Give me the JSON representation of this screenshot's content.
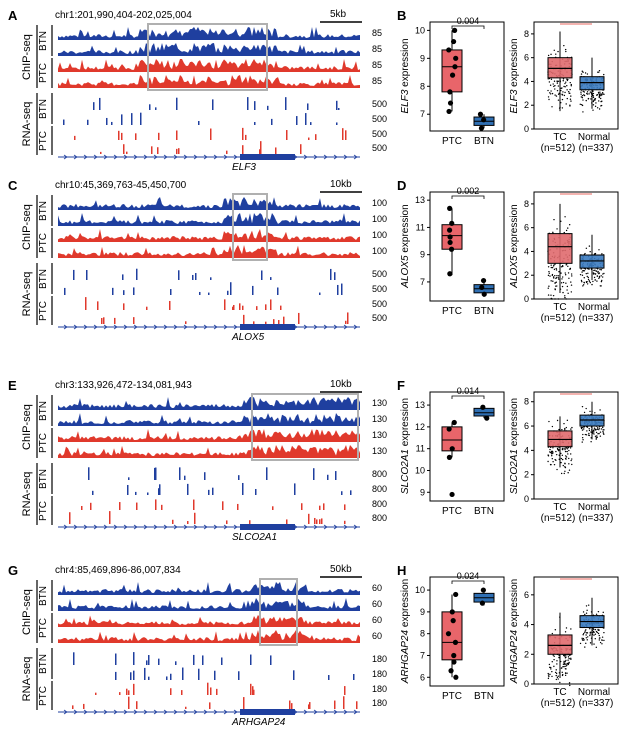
{
  "colors": {
    "btn": "#1f3f9f",
    "ptc": "#e0392c",
    "box_ptc": "#e8656a",
    "box_btn": "#2f6fb3",
    "box_tc": "#e06a6e",
    "box_normal": "#3b7bc0",
    "highlight": "#b0b0b0"
  },
  "labels": {
    "chipseq": "ChIP-seq",
    "rnaseq": "RNA-seq",
    "btn": "BTN",
    "ptc": "PTC",
    "tc": "TC",
    "normal": "Normal",
    "n_tc": "(n=512)",
    "n_normal": "(n=337)"
  },
  "panels": [
    {
      "track_letter": "A",
      "box_letter": "B",
      "coord": "chr1:201,990,404-202,025,004",
      "scale": "5kb",
      "gene": "ELF3",
      "chip_ticks": [
        "85",
        "85",
        "85",
        "85"
      ],
      "rna_ticks": [
        "500",
        "500",
        "500",
        "500"
      ],
      "ylabel": "expression",
      "pvalue": "0.004",
      "left_yticks": [
        "10",
        "9",
        "8",
        "7"
      ],
      "right_yticks": [
        "8",
        "6",
        "4",
        "2",
        "0"
      ],
      "chart_data": {
        "type": "box",
        "categories": [
          "PTC",
          "BTN"
        ],
        "ylim": [
          6.4,
          10.3
        ],
        "boxes": [
          {
            "min": 7.1,
            "q1": 7.8,
            "median": 8.7,
            "q3": 9.3,
            "max": 10.0
          },
          {
            "min": 6.5,
            "q1": 6.6,
            "median": 6.75,
            "q3": 6.9,
            "max": 7.0
          }
        ],
        "points": [
          [
            10.0,
            9.6,
            9.3,
            9.0,
            8.7,
            8.4,
            7.8,
            7.4,
            7.1
          ],
          [
            7.0,
            6.8,
            6.5
          ]
        ]
      },
      "tcga": {
        "ylim": [
          0,
          9
        ],
        "boxes": [
          {
            "min": 1.5,
            "q1": 4.3,
            "median": 5.1,
            "q3": 6.0,
            "max": 8.2
          },
          {
            "min": 1.7,
            "q1": 3.3,
            "median": 3.9,
            "q3": 4.4,
            "max": 6.0
          }
        ]
      }
    },
    {
      "track_letter": "C",
      "box_letter": "D",
      "coord": "chr10:45,369,763-45,450,700",
      "scale": "10kb",
      "gene": "ALOX5",
      "chip_ticks": [
        "100",
        "100",
        "100",
        "100"
      ],
      "rna_ticks": [
        "500",
        "500",
        "500",
        "500"
      ],
      "ylabel": "expression",
      "pvalue": "0.002",
      "left_yticks": [
        "13",
        "11",
        "9",
        "7"
      ],
      "right_yticks": [
        "8",
        "6",
        "4",
        "2",
        "0"
      ],
      "chart_data": {
        "type": "box",
        "categories": [
          "PTC",
          "BTN"
        ],
        "ylim": [
          5.6,
          13.6
        ],
        "boxes": [
          {
            "min": 7.5,
            "q1": 9.4,
            "median": 10.4,
            "q3": 11.2,
            "max": 12.4
          },
          {
            "min": 5.9,
            "q1": 6.2,
            "median": 6.5,
            "q3": 6.8,
            "max": 7.2
          }
        ],
        "points": [
          [
            12.4,
            11.3,
            10.8,
            10.3,
            9.9,
            9.4,
            7.6
          ],
          [
            7.1,
            6.6,
            6.1
          ]
        ]
      },
      "tcga": {
        "ylim": [
          0,
          9
        ],
        "boxes": [
          {
            "min": 0.5,
            "q1": 3.0,
            "median": 4.4,
            "q3": 5.5,
            "max": 8.0
          },
          {
            "min": 1.6,
            "q1": 2.6,
            "median": 3.2,
            "q3": 3.7,
            "max": 5.4
          }
        ]
      }
    },
    {
      "track_letter": "E",
      "box_letter": "F",
      "coord": "chr3:133,926,472-134,081,943",
      "scale": "10kb",
      "gene": "SLCO2A1",
      "chip_ticks": [
        "130",
        "130",
        "130",
        "130"
      ],
      "rna_ticks": [
        "800",
        "800",
        "800",
        "800"
      ],
      "ylabel": "expression",
      "pvalue": "0.014",
      "left_yticks": [
        "13",
        "12",
        "11",
        "10",
        "9"
      ],
      "right_yticks": [
        "8",
        "6",
        "4",
        "2",
        "0"
      ],
      "chart_data": {
        "type": "box",
        "categories": [
          "PTC",
          "BTN"
        ],
        "ylim": [
          8.6,
          13.6
        ],
        "boxes": [
          {
            "min": 10.6,
            "q1": 10.9,
            "median": 11.4,
            "q3": 12.0,
            "max": 12.2
          },
          {
            "min": 12.4,
            "q1": 12.5,
            "median": 12.65,
            "q3": 12.85,
            "max": 13.0
          }
        ],
        "points": [
          [
            12.2,
            11.9,
            11.0,
            10.6,
            8.9
          ],
          [
            12.9,
            12.4
          ]
        ]
      },
      "tcga": {
        "ylim": [
          0,
          8.8
        ],
        "boxes": [
          {
            "min": 2.6,
            "q1": 4.3,
            "median": 4.9,
            "q3": 5.6,
            "max": 6.8
          },
          {
            "min": 4.9,
            "q1": 6.0,
            "median": 6.5,
            "q3": 6.9,
            "max": 8.0
          }
        ]
      }
    },
    {
      "track_letter": "G",
      "box_letter": "H",
      "coord": "chr4:85,469,896-86,007,834",
      "scale": "50kb",
      "gene": "ARHGAP24",
      "chip_ticks": [
        "60",
        "60",
        "60",
        "60"
      ],
      "rna_ticks": [
        "180",
        "180",
        "180",
        "180"
      ],
      "ylabel": "expression",
      "pvalue": "0.024",
      "left_yticks": [
        "10",
        "9",
        "8",
        "7",
        "6"
      ],
      "right_yticks": [
        "6",
        "4",
        "2",
        "0"
      ],
      "chart_data": {
        "type": "box",
        "categories": [
          "PTC",
          "BTN"
        ],
        "ylim": [
          5.6,
          10.6
        ],
        "boxes": [
          {
            "min": 6.0,
            "q1": 6.8,
            "median": 7.6,
            "q3": 9.0,
            "max": 9.8
          },
          {
            "min": 9.3,
            "q1": 9.45,
            "median": 9.65,
            "q3": 9.85,
            "max": 10.0
          }
        ],
        "points": [
          [
            9.8,
            9.0,
            8.6,
            8.0,
            7.6,
            7.0,
            6.7,
            6.3,
            6.0
          ],
          [
            10.0,
            9.4
          ]
        ]
      },
      "tcga": {
        "ylim": [
          0,
          7.2
        ],
        "boxes": [
          {
            "min": 0.4,
            "q1": 2.0,
            "median": 2.6,
            "q3": 3.3,
            "max": 4.8
          },
          {
            "min": 2.6,
            "q1": 3.8,
            "median": 4.2,
            "q3": 4.6,
            "max": 5.8
          }
        ]
      }
    }
  ]
}
